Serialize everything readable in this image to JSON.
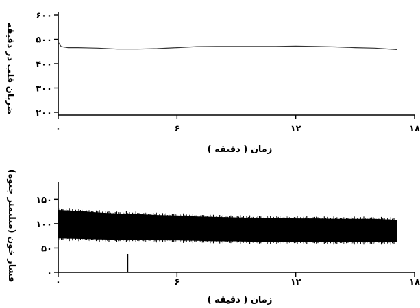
{
  "chart_data": [
    {
      "type": "line",
      "ylabel": "ضربان قلب در دقیقه",
      "xlabel": "زمان ( دقیقه )",
      "xlim": [
        0,
        18
      ],
      "ylim": [
        200,
        600
      ],
      "x_ticks": [
        0,
        6,
        12,
        18
      ],
      "x_tick_labels": [
        "۰",
        "۶",
        "۱۲",
        "۱۸"
      ],
      "y_ticks": [
        200,
        300,
        400,
        500,
        600
      ],
      "y_tick_labels": [
        "۲۰۰",
        "۳۰۰",
        "۴۰۰",
        "۵۰۰",
        "۶۰۰"
      ],
      "series": [
        {
          "x": [
            0,
            0.15,
            0.5,
            1,
            2,
            3,
            4,
            5,
            6,
            7,
            8,
            9,
            10,
            11,
            12,
            13,
            14,
            15,
            16,
            17.1
          ],
          "y": [
            488,
            470,
            466,
            466,
            464,
            460,
            460,
            462,
            466,
            470,
            471,
            471,
            471,
            471,
            472,
            471,
            469,
            466,
            464,
            458
          ]
        }
      ]
    },
    {
      "type": "area",
      "ylabel": "فشار خون (میلیمتر جیوه)",
      "xlabel": "زمان ( دقیقه )",
      "xlim": [
        0,
        18
      ],
      "ylim": [
        0,
        180
      ],
      "x_ticks": [
        0,
        6,
        12,
        18
      ],
      "x_tick_labels": [
        "۰",
        "۶",
        "۱۲",
        "۱۸"
      ],
      "y_ticks": [
        0,
        50,
        100,
        150
      ],
      "y_tick_labels": [
        "۰",
        "۵۰",
        "۱۰۰",
        "۱۵۰"
      ],
      "series": [
        {
          "x": [
            0,
            1,
            2,
            3,
            4,
            5,
            6,
            7,
            8,
            9,
            10,
            11,
            12,
            13,
            14,
            15,
            16,
            17.1
          ],
          "upper": [
            128,
            126,
            123,
            121,
            120,
            118,
            117,
            115,
            114,
            113,
            112,
            112,
            111,
            111,
            110,
            110,
            110,
            108
          ],
          "lower": [
            70,
            69,
            68,
            67,
            67,
            66,
            66,
            65,
            64,
            64,
            63,
            63,
            63,
            63,
            62,
            62,
            62,
            62
          ]
        }
      ],
      "annotations": [
        {
          "type": "vertical-marker",
          "x": 3.5,
          "y_from": 0,
          "y_to": 38
        }
      ]
    }
  ]
}
